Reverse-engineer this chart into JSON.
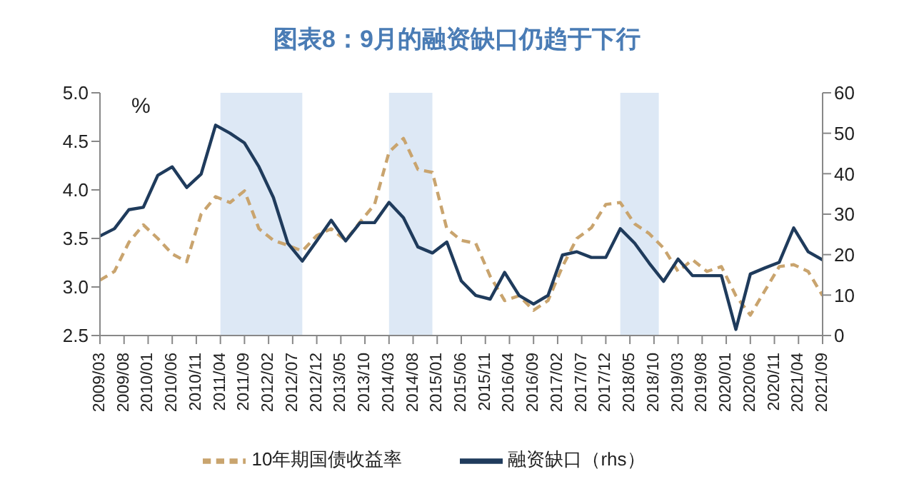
{
  "chart_data": {
    "type": "line",
    "title": "图表8：9月的融资缺口仍趋于下行",
    "ylabel": "%",
    "x": [
      "2009-03",
      "2009-06",
      "2009-09",
      "2009-12",
      "2010-03",
      "2010-06",
      "2010-09",
      "2010-12",
      "2011-03",
      "2011-06",
      "2011-09",
      "2011-12",
      "2012-03",
      "2012-06",
      "2012-09",
      "2012-12",
      "2013-03",
      "2013-06",
      "2013-09",
      "2013-12",
      "2014-03",
      "2014-06",
      "2014-09",
      "2014-12",
      "2015-03",
      "2015-06",
      "2015-09",
      "2015-12",
      "2016-03",
      "2016-06",
      "2016-09",
      "2016-12",
      "2017-03",
      "2017-06",
      "2017-09",
      "2017-12",
      "2018-03",
      "2018-06",
      "2018-09",
      "2018-12",
      "2019-03",
      "2019-06",
      "2019-09",
      "2019-12",
      "2020-03",
      "2020-06",
      "2020-09",
      "2020-12",
      "2021-03",
      "2021-06",
      "2021-09"
    ],
    "series": [
      {
        "name": "10年期国债收益率",
        "color": "#c9a46e",
        "line_style": "dashed",
        "values": [
          3.07,
          3.16,
          3.46,
          3.64,
          3.5,
          3.34,
          3.26,
          3.75,
          3.93,
          3.87,
          3.99,
          3.6,
          3.48,
          3.43,
          3.37,
          3.53,
          3.6,
          3.48,
          3.67,
          3.85,
          4.39,
          4.53,
          4.21,
          4.18,
          3.6,
          3.48,
          3.45,
          3.11,
          2.86,
          2.91,
          2.76,
          2.86,
          3.21,
          3.5,
          3.61,
          3.85,
          3.87,
          3.65,
          3.55,
          3.4,
          3.16,
          3.28,
          3.16,
          3.21,
          2.91,
          2.71,
          2.96,
          3.21,
          3.23,
          3.16,
          2.91
        ]
      },
      {
        "name": "融资缺口（rhs）",
        "color": "#1f3b5c",
        "line_style": "solid",
        "axis": "y2",
        "values": [
          24.6,
          26.4,
          31.1,
          31.7,
          39.6,
          41.7,
          36.6,
          39.9,
          52,
          50,
          47.6,
          41.7,
          34.1,
          22.8,
          18.4,
          23.4,
          28.5,
          23.4,
          27.9,
          27.9,
          32.9,
          29.1,
          21.9,
          20.4,
          23.1,
          13.5,
          9.9,
          9,
          15.6,
          9.9,
          7.8,
          9.9,
          19.9,
          20.7,
          19.3,
          19.3,
          26.4,
          22.8,
          17.9,
          13.4,
          18.9,
          14.8,
          14.8,
          14.8,
          1.5,
          15.2,
          16.7,
          18.1,
          26.6,
          20.7,
          18.7
        ]
      }
    ],
    "xlim": [
      "2009-03",
      "2021-09"
    ],
    "xticks": [
      {
        "value": "2009-03",
        "label": "2009/03"
      },
      {
        "value": "2009-08",
        "label": "2009/08"
      },
      {
        "value": "2010-01",
        "label": "2010/01"
      },
      {
        "value": "2010-06",
        "label": "2010/06"
      },
      {
        "value": "2010-11",
        "label": "2010/11"
      },
      {
        "value": "2011-04",
        "label": "2011/04"
      },
      {
        "value": "2011-09",
        "label": "2011/09"
      },
      {
        "value": "2012-02",
        "label": "2012/02"
      },
      {
        "value": "2012-07",
        "label": "2012/07"
      },
      {
        "value": "2012-12",
        "label": "2012/12"
      },
      {
        "value": "2013-05",
        "label": "2013/05"
      },
      {
        "value": "2013-10",
        "label": "2013/10"
      },
      {
        "value": "2014-03",
        "label": "2014/03"
      },
      {
        "value": "2014-08",
        "label": "2014/08"
      },
      {
        "value": "2015-01",
        "label": "2015/01"
      },
      {
        "value": "2015-06",
        "label": "2015/06"
      },
      {
        "value": "2015-11",
        "label": "2015/11"
      },
      {
        "value": "2016-04",
        "label": "2016/04"
      },
      {
        "value": "2016-09",
        "label": "2016/09"
      },
      {
        "value": "2017-02",
        "label": "2017/02"
      },
      {
        "value": "2017-07",
        "label": "2017/07"
      },
      {
        "value": "2017-12",
        "label": "2017/12"
      },
      {
        "value": "2018-05",
        "label": "2018/05"
      },
      {
        "value": "2018-10",
        "label": "2018/10"
      },
      {
        "value": "2019-03",
        "label": "2019/03"
      },
      {
        "value": "2019-08",
        "label": "2019/08"
      },
      {
        "value": "2020-01",
        "label": "2020/01"
      },
      {
        "value": "2020-06",
        "label": "2020/06"
      },
      {
        "value": "2020-11",
        "label": "2020/11"
      },
      {
        "value": "2021-04",
        "label": "2021/04"
      },
      {
        "value": "2021-09",
        "label": "2021/09"
      }
    ],
    "ylim": [
      2.5,
      5
    ],
    "yticks": [
      {
        "value": 2.5,
        "label": "2.5"
      },
      {
        "value": 3,
        "label": "3.0"
      },
      {
        "value": 3.5,
        "label": "3.5"
      },
      {
        "value": 4,
        "label": "4.0"
      },
      {
        "value": 4.5,
        "label": "4.5"
      },
      {
        "value": 5,
        "label": "5.0"
      }
    ],
    "y2lim": [
      0,
      60
    ],
    "y2ticks": [
      0,
      10,
      20,
      30,
      40,
      50,
      60
    ],
    "bands": [
      {
        "axis": "x",
        "from": "2011-04",
        "to": "2012-09",
        "color": "#dde8f5"
      },
      {
        "axis": "x",
        "from": "2014-03",
        "to": "2014-12",
        "color": "#dde8f5"
      },
      {
        "axis": "x",
        "from": "2018-03",
        "to": "2018-11",
        "color": "#dde8f5"
      }
    ],
    "marker": "none",
    "grid": false,
    "legend": "bottom"
  }
}
